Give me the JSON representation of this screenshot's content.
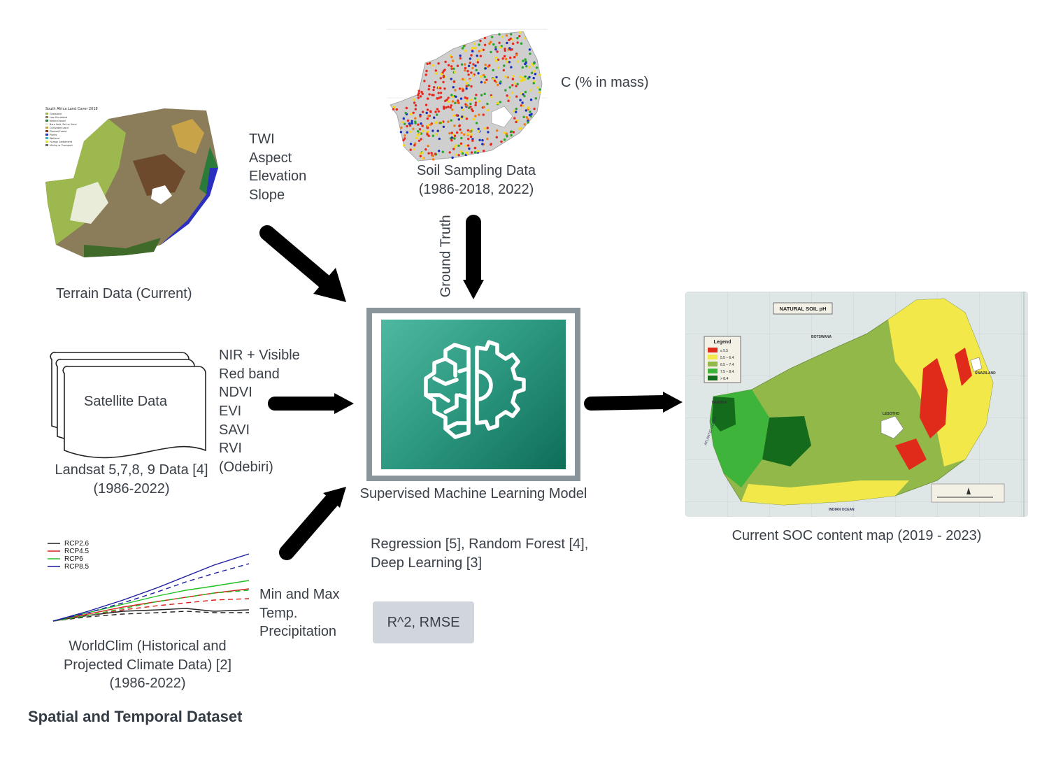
{
  "terrain": {
    "caption": "Terrain Data (Current)",
    "features": [
      "TWI",
      "Aspect",
      "Elevation",
      "Slope"
    ],
    "map_title": "South Africa Land Cover 2018",
    "map_legend": [
      "Grassland",
      "Low Shrubland",
      "Natural wood",
      "Bare Veld, Soil or Sand",
      "Cultivated Land",
      "Planted Forest",
      "Plants",
      "Wetland",
      "Human Settlement",
      "Mining or Transport"
    ]
  },
  "soil": {
    "caption_line1": "Soil Sampling Data",
    "caption_line2": "(1986-2018, 2022)",
    "unit_label": "C (% in mass)",
    "ground_truth_label": "Ground Truth"
  },
  "satellite": {
    "doc_label": "Satellite Data",
    "caption_line1": "Landsat 5,7,8, 9 Data [4]",
    "caption_line2": "(1986-2022)",
    "features": [
      "NIR + Visible",
      "Red band",
      "NDVI",
      "EVI",
      "SAVI",
      "RVI",
      "(Odebiri)"
    ]
  },
  "model": {
    "caption": "Supervised Machine Learning Model",
    "methods_line1": "Regression [5], Random Forest [4],",
    "methods_line2": "Deep Learning [3]",
    "metrics": "R^2, RMSE",
    "icon": "brain-gear-icon",
    "tile_colors": [
      "#0e6e58",
      "#4fb8a0"
    ],
    "frame_color": "#8a949b"
  },
  "climate": {
    "caption_line1": "WorldClim (Historical and",
    "caption_line2": "Projected Climate Data) [2]",
    "caption_line3": "(1986-2022)",
    "features": [
      "Min and Max",
      "Temp.",
      "Precipitation"
    ],
    "legend": [
      {
        "name": "RCP2.6",
        "color": "#222222"
      },
      {
        "name": "RCP4.5",
        "color": "#d22020"
      },
      {
        "name": "RCP6",
        "color": "#22c022"
      },
      {
        "name": "RCP8.5",
        "color": "#1a1aa0"
      }
    ]
  },
  "output": {
    "caption": "Current SOC content map (2019 - 2023)",
    "map_title": "NATURAL SOIL pH",
    "legend_title": "Legend",
    "legend_items": [
      {
        "label": "≤ 5.5",
        "color": "#e02a1a"
      },
      {
        "label": "5.5 – 6.4",
        "color": "#f2e84a"
      },
      {
        "label": "6.5 – 7.4",
        "color": "#93b84a"
      },
      {
        "label": "7.5 – 8.4",
        "color": "#3eb43a"
      },
      {
        "label": "> 8.4",
        "color": "#146b1c"
      }
    ],
    "place_labels": [
      "BOTSWANA",
      "SWAZILAND",
      "NAMIBIA",
      "LESOTHO",
      "ATLANTIC OCEAN",
      "INDIAN OCEAN"
    ]
  },
  "section_title": "Spatial and Temporal Dataset"
}
